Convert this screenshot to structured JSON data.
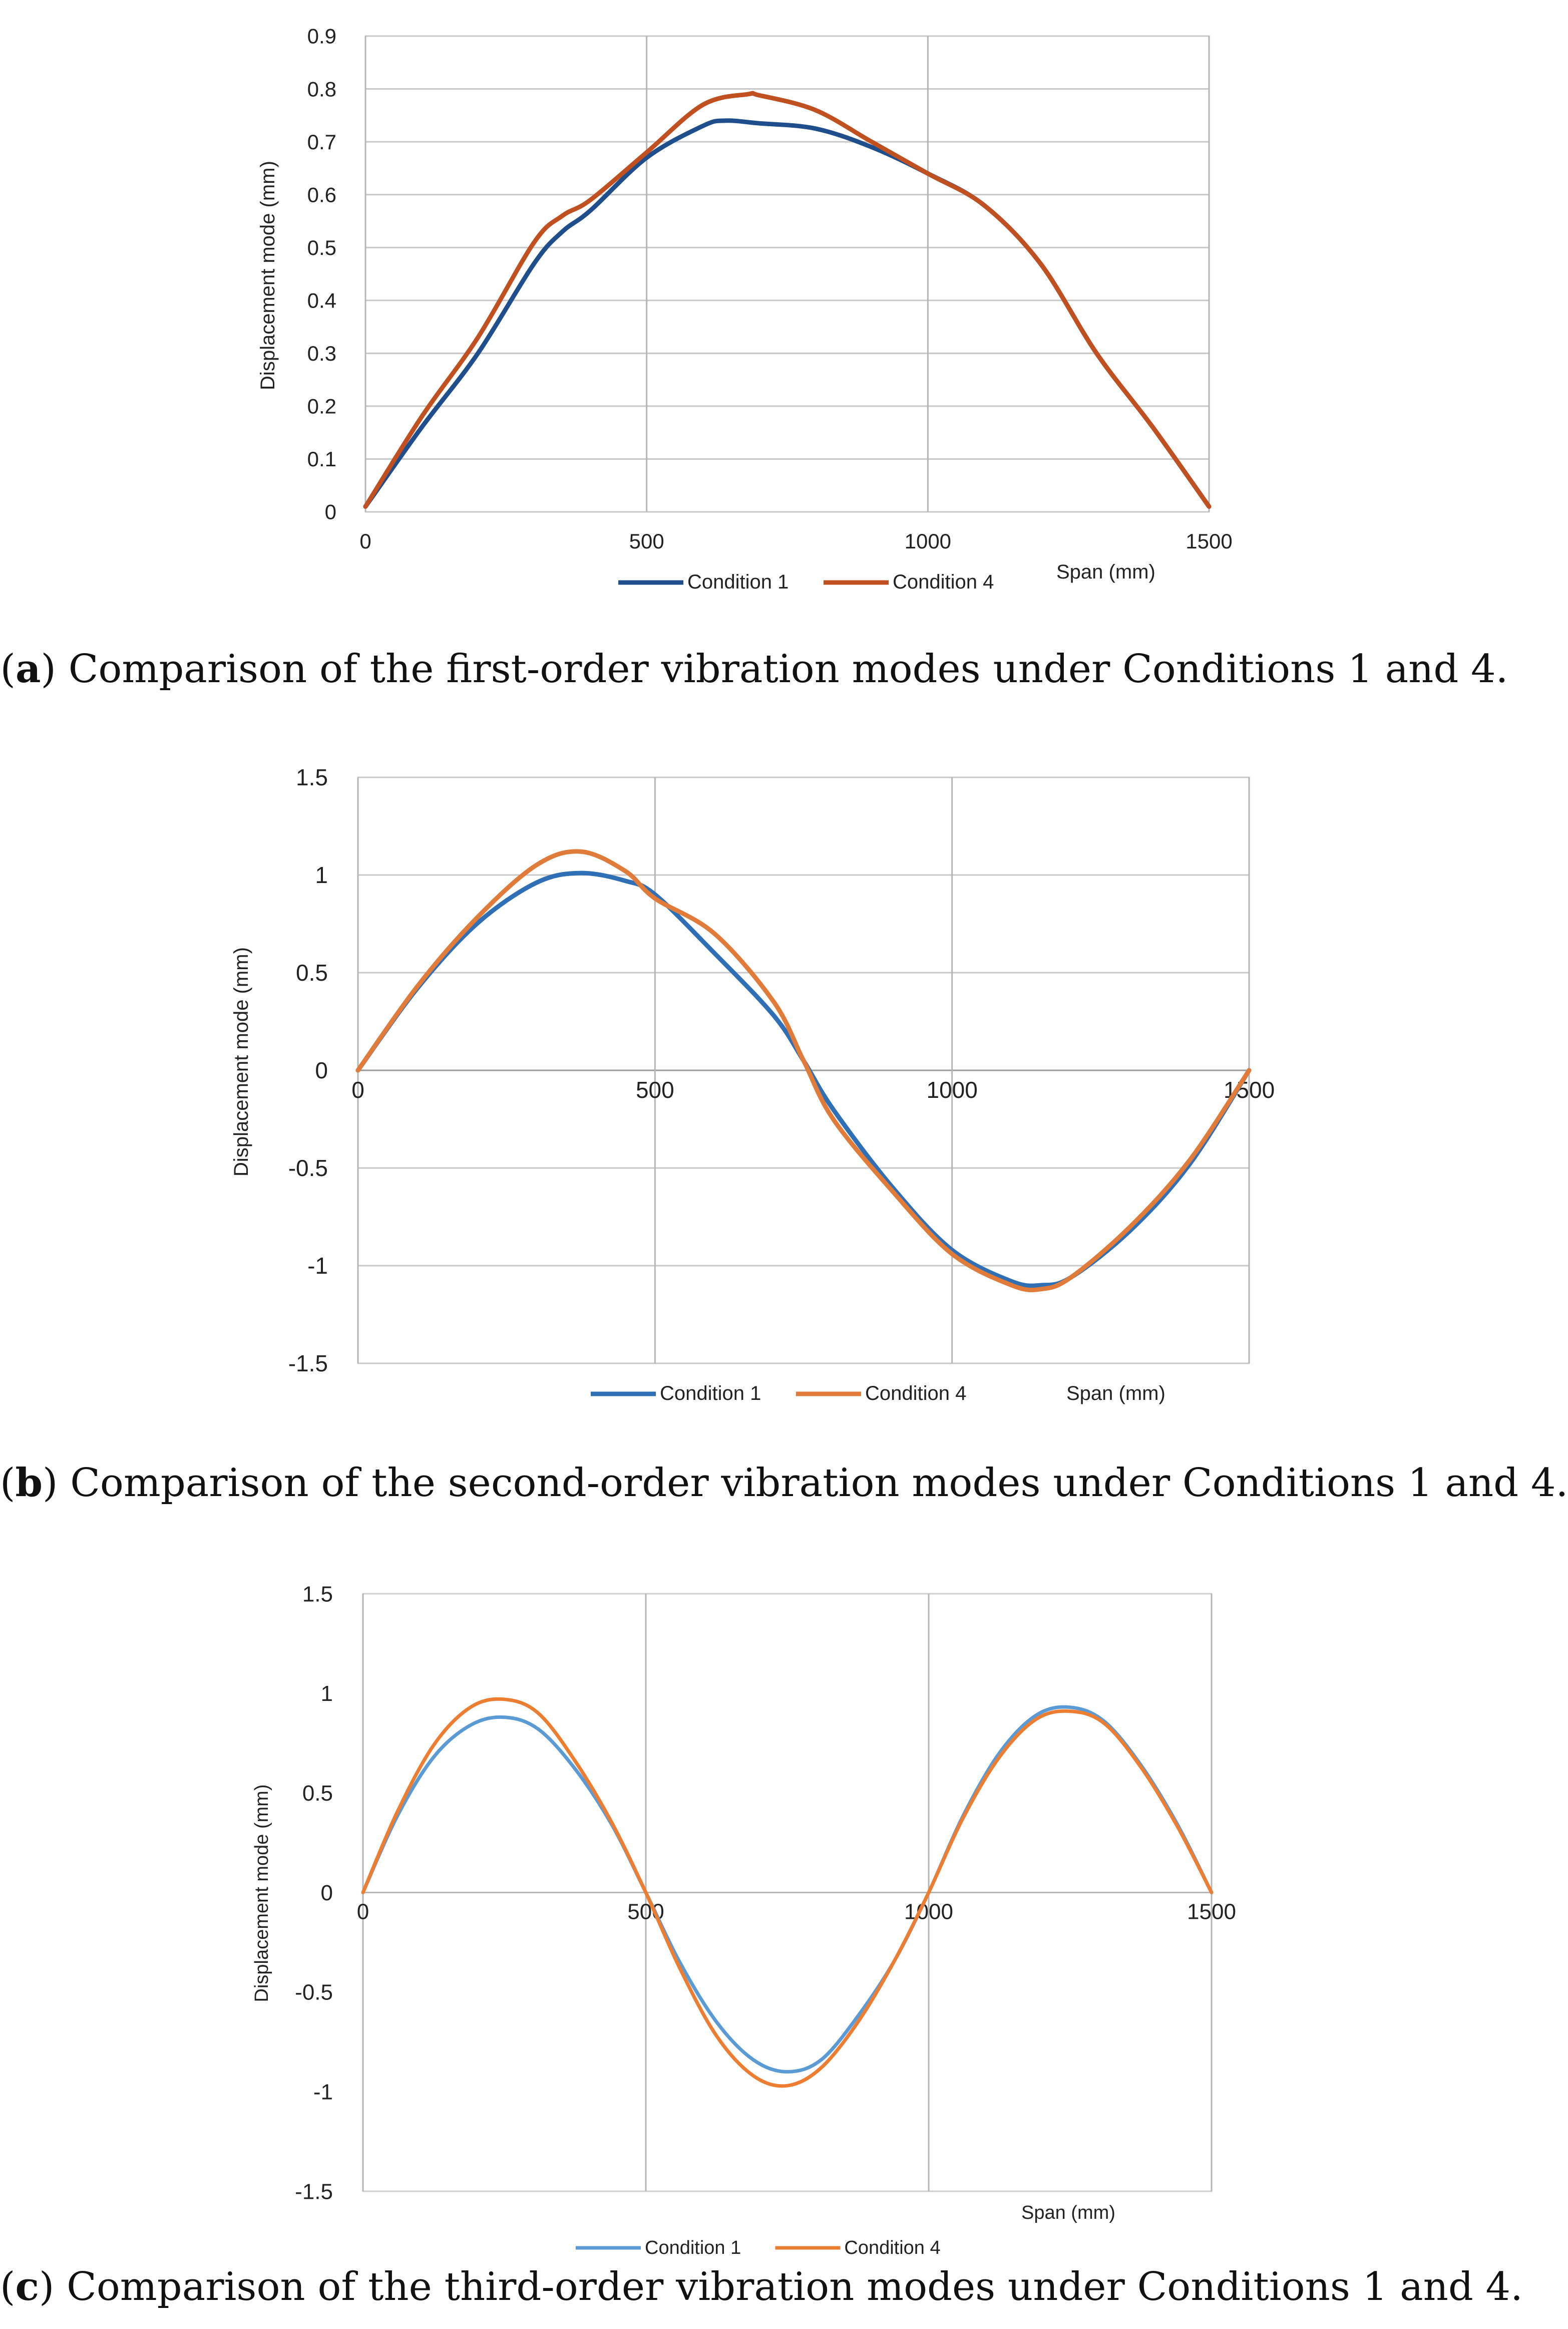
{
  "chart_data": [
    {
      "id": "a",
      "type": "line",
      "caption_letter": "a",
      "caption_text": ") Comparison of the first-order vibration modes under Conditions 1 and 4.",
      "xlabel": "Span (mm)",
      "ylabel": "Displacement mode (mm)",
      "xlim": [
        0,
        1500
      ],
      "ylim": [
        0,
        0.9
      ],
      "xticks": [
        0,
        500,
        1000,
        1500
      ],
      "xtick_labels": [
        "0",
        "500",
        "1000",
        "1500"
      ],
      "yticks": [
        0,
        0.1,
        0.2,
        0.3,
        0.4,
        0.5,
        0.6,
        0.7,
        0.8,
        0.9
      ],
      "ytick_labels": [
        "0",
        "0.1",
        "0.2",
        "0.3",
        "0.4",
        "0.5",
        "0.6",
        "0.7",
        "0.8",
        "0.9"
      ],
      "grid": "vertical-and-horizontal",
      "legend": "bottom",
      "series": [
        {
          "name": "Condition 1",
          "color": "#1f4e8c",
          "x": [
            0,
            100,
            200,
            300,
            350,
            400,
            500,
            600,
            640,
            700,
            800,
            900,
            1000,
            1100,
            1200,
            1300,
            1400,
            1500
          ],
          "y": [
            0.01,
            0.16,
            0.3,
            0.47,
            0.53,
            0.57,
            0.67,
            0.73,
            0.74,
            0.735,
            0.725,
            0.69,
            0.64,
            0.58,
            0.47,
            0.3,
            0.16,
            0.01
          ]
        },
        {
          "name": "Condition 4",
          "color": "#c0501f",
          "x": [
            0,
            100,
            200,
            300,
            350,
            400,
            500,
            600,
            680,
            700,
            800,
            900,
            1000,
            1100,
            1200,
            1300,
            1400,
            1500
          ],
          "y": [
            0.01,
            0.18,
            0.33,
            0.51,
            0.56,
            0.59,
            0.68,
            0.77,
            0.79,
            0.788,
            0.76,
            0.7,
            0.64,
            0.58,
            0.47,
            0.3,
            0.16,
            0.01
          ]
        }
      ]
    },
    {
      "id": "b",
      "type": "line",
      "caption_letter": "b",
      "caption_text": ") Comparison of the second-order vibration modes under Conditions 1 and 4.",
      "xlabel": "Span (mm)",
      "ylabel": "Displacement mode (mm)",
      "xlim": [
        0,
        1500
      ],
      "ylim": [
        -1.5,
        1.5
      ],
      "xticks": [
        0,
        500,
        1000,
        1500
      ],
      "xtick_labels": [
        "0",
        "500",
        "1000",
        "1500"
      ],
      "yticks": [
        -1.5,
        -1,
        -0.5,
        0,
        0.5,
        1,
        1.5
      ],
      "ytick_labels": [
        "-1.5",
        "-1",
        "-0.5",
        "0",
        "0.5",
        "1",
        "1.5"
      ],
      "grid": "vertical-and-horizontal",
      "legend": "bottom",
      "series": [
        {
          "name": "Condition 1",
          "color": "#2e6fb5",
          "x": [
            0,
            100,
            200,
            300,
            375,
            450,
            500,
            600,
            700,
            750,
            800,
            900,
            1000,
            1100,
            1150,
            1200,
            1300,
            1400,
            1500
          ],
          "y": [
            0,
            0.42,
            0.75,
            0.96,
            1.01,
            0.97,
            0.9,
            0.6,
            0.28,
            0.05,
            -0.2,
            -0.6,
            -0.92,
            -1.08,
            -1.1,
            -1.06,
            -0.82,
            -0.48,
            0
          ]
        },
        {
          "name": "Condition 4",
          "color": "#e07b39",
          "x": [
            0,
            100,
            200,
            300,
            375,
            450,
            500,
            600,
            700,
            750,
            800,
            900,
            1000,
            1100,
            1150,
            1200,
            1300,
            1400,
            1500
          ],
          "y": [
            0,
            0.43,
            0.78,
            1.05,
            1.12,
            1.02,
            0.88,
            0.7,
            0.35,
            0.05,
            -0.25,
            -0.62,
            -0.94,
            -1.1,
            -1.12,
            -1.06,
            -0.8,
            -0.46,
            0
          ]
        }
      ]
    },
    {
      "id": "c",
      "type": "line",
      "caption_letter": "c",
      "caption_text": ") Comparison of the third-order vibration modes under Conditions 1 and 4.",
      "xlabel": "Span (mm)",
      "ylabel": "Displacement mode (mm)",
      "xlim": [
        0,
        1500
      ],
      "ylim": [
        -1.5,
        1.5
      ],
      "xticks": [
        0,
        500,
        1000,
        1500
      ],
      "xtick_labels": [
        "0",
        "500",
        "1000",
        "1500"
      ],
      "yticks": [
        -1.5,
        -1,
        -0.5,
        0,
        0.5,
        1,
        1.5
      ],
      "ytick_labels": [
        "-1.5",
        "-1",
        "-0.5",
        "0",
        "0.5",
        "1",
        "1.5"
      ],
      "grid": "vertical",
      "legend": "bottom",
      "series": [
        {
          "name": "Condition 1",
          "color": "#5b9bd5",
          "x": [
            0,
            60,
            125,
            190,
            250,
            310,
            375,
            440,
            500,
            560,
            625,
            690,
            750,
            810,
            875,
            940,
            1000,
            1060,
            1125,
            1190,
            1250,
            1310,
            1375,
            1440,
            1500
          ],
          "y": [
            0,
            0.38,
            0.68,
            0.84,
            0.88,
            0.82,
            0.62,
            0.34,
            0,
            -0.35,
            -0.65,
            -0.84,
            -0.9,
            -0.84,
            -0.62,
            -0.34,
            0,
            0.38,
            0.7,
            0.89,
            0.93,
            0.86,
            0.64,
            0.34,
            0
          ]
        },
        {
          "name": "Condition 4",
          "color": "#ed7d31",
          "x": [
            0,
            60,
            125,
            190,
            250,
            310,
            375,
            440,
            500,
            560,
            625,
            690,
            750,
            810,
            875,
            940,
            1000,
            1060,
            1125,
            1190,
            1250,
            1310,
            1375,
            1440,
            1500
          ],
          "y": [
            0,
            0.4,
            0.74,
            0.93,
            0.97,
            0.9,
            0.66,
            0.35,
            0,
            -0.38,
            -0.72,
            -0.92,
            -0.97,
            -0.88,
            -0.65,
            -0.34,
            0,
            0.37,
            0.68,
            0.87,
            0.91,
            0.85,
            0.63,
            0.33,
            0
          ]
        }
      ]
    }
  ]
}
